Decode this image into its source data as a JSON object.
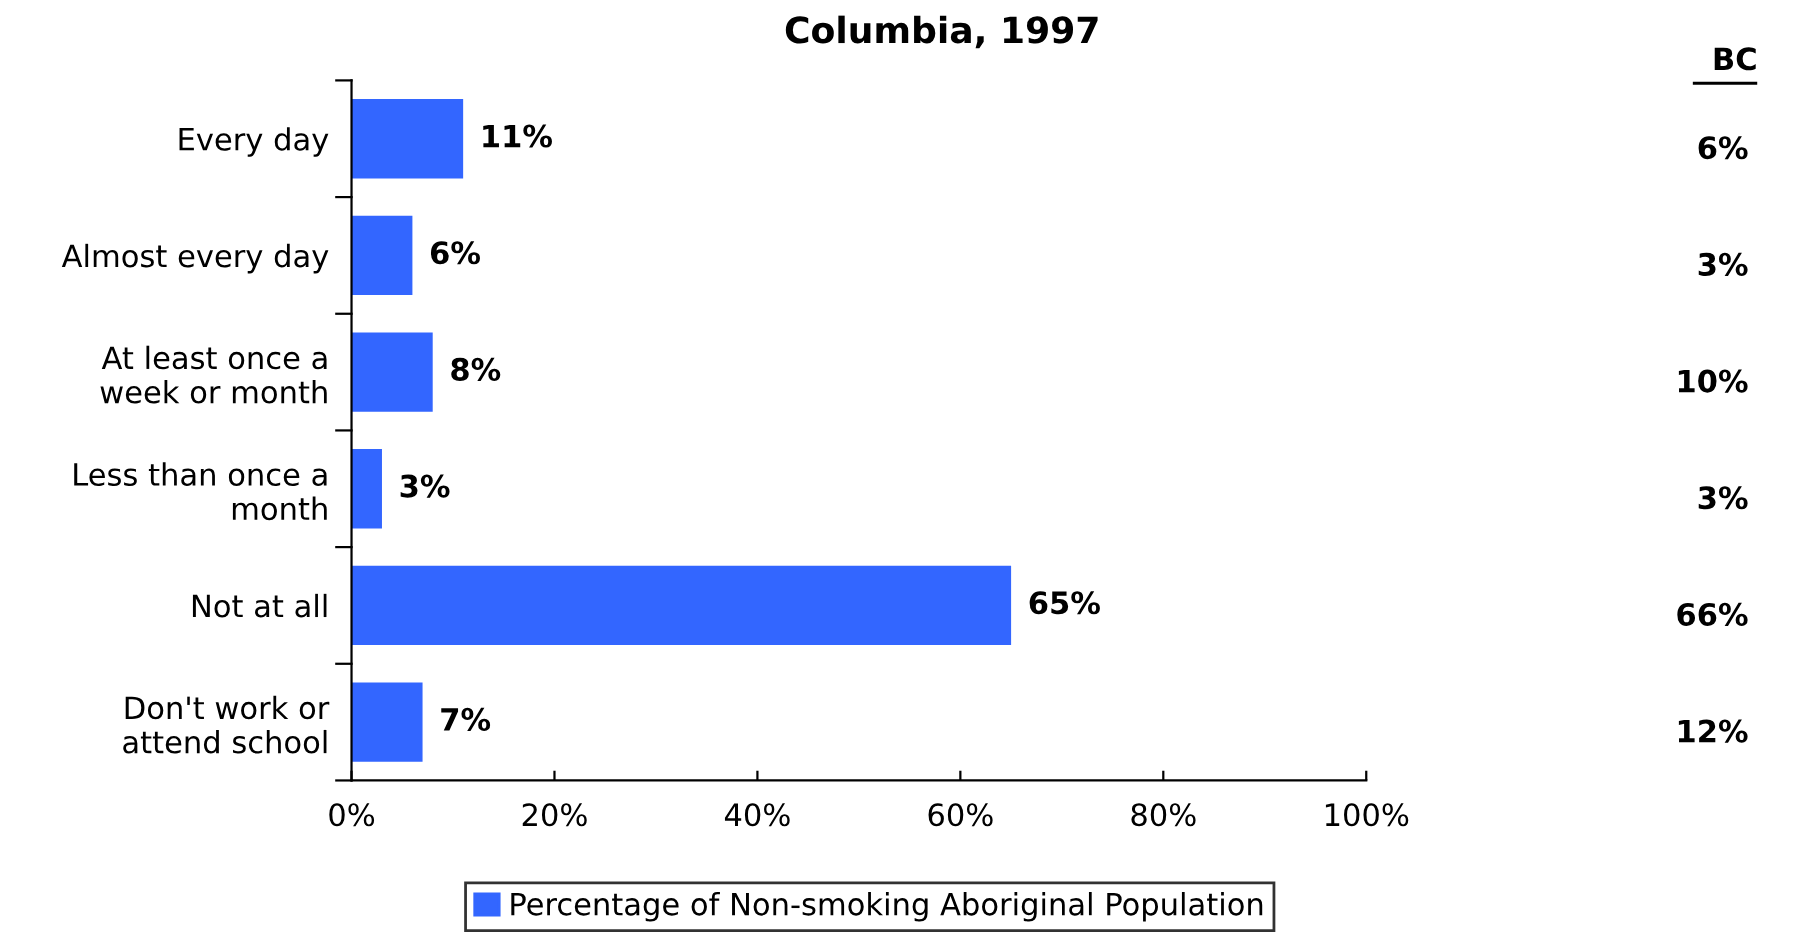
{
  "chart_data": {
    "type": "bar",
    "orientation": "horizontal",
    "title": "Columbia, 1997",
    "categories": [
      "Every day",
      "Almost every day",
      "At least once a\nweek or month",
      "Less than once a\nmonth",
      "Not at all",
      "Don't work or\nattend school"
    ],
    "series": [
      {
        "name": "Percentage of Non-smoking Aboriginal Population",
        "color": "#3366ff",
        "values": [
          11,
          6,
          8,
          3,
          65,
          7
        ],
        "value_labels": [
          "11%",
          "6%",
          "8%",
          "3%",
          "65%",
          "7%"
        ]
      }
    ],
    "xlim": [
      0,
      100
    ],
    "xticks": [
      {
        "value": 0,
        "label": "0%"
      },
      {
        "value": 20,
        "label": "20%"
      },
      {
        "value": 40,
        "label": "40%"
      },
      {
        "value": 60,
        "label": "60%"
      },
      {
        "value": 80,
        "label": "80%"
      },
      {
        "value": 100,
        "label": "100%"
      }
    ],
    "annotations": [
      "BC",
      "6%",
      "3%",
      "10%",
      "3%",
      "66%",
      "12%"
    ],
    "legend": "bottom",
    "grid": false
  }
}
